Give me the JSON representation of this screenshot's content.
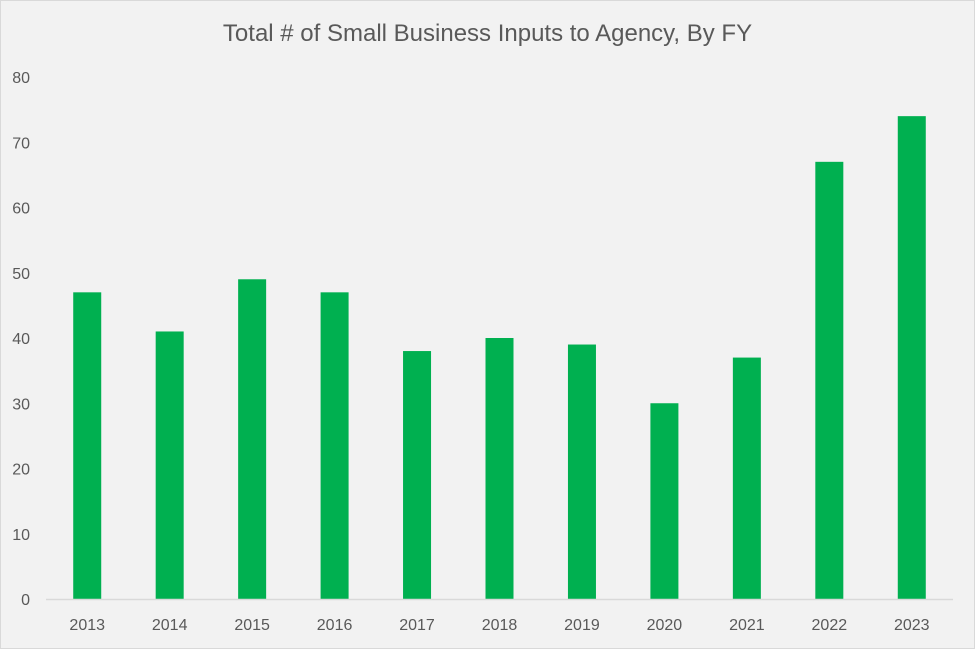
{
  "chart_data": {
    "type": "bar",
    "title": "Total # of Small Business Inputs to Agency, By FY",
    "xlabel": "",
    "ylabel": "",
    "categories": [
      "2013",
      "2014",
      "2015",
      "2016",
      "2017",
      "2018",
      "2019",
      "2020",
      "2021",
      "2022",
      "2023"
    ],
    "values": [
      47,
      41,
      49,
      47,
      38,
      40,
      39,
      30,
      37,
      67,
      74
    ],
    "ylim": [
      0,
      80
    ],
    "yticks": [
      0,
      10,
      20,
      30,
      40,
      50,
      60,
      70,
      80
    ],
    "grid": false,
    "legend": "none",
    "bar_color": "#00b050",
    "background_color": "#f2f2f2",
    "axis_color": "#d9d9d9",
    "text_color": "#595959"
  }
}
